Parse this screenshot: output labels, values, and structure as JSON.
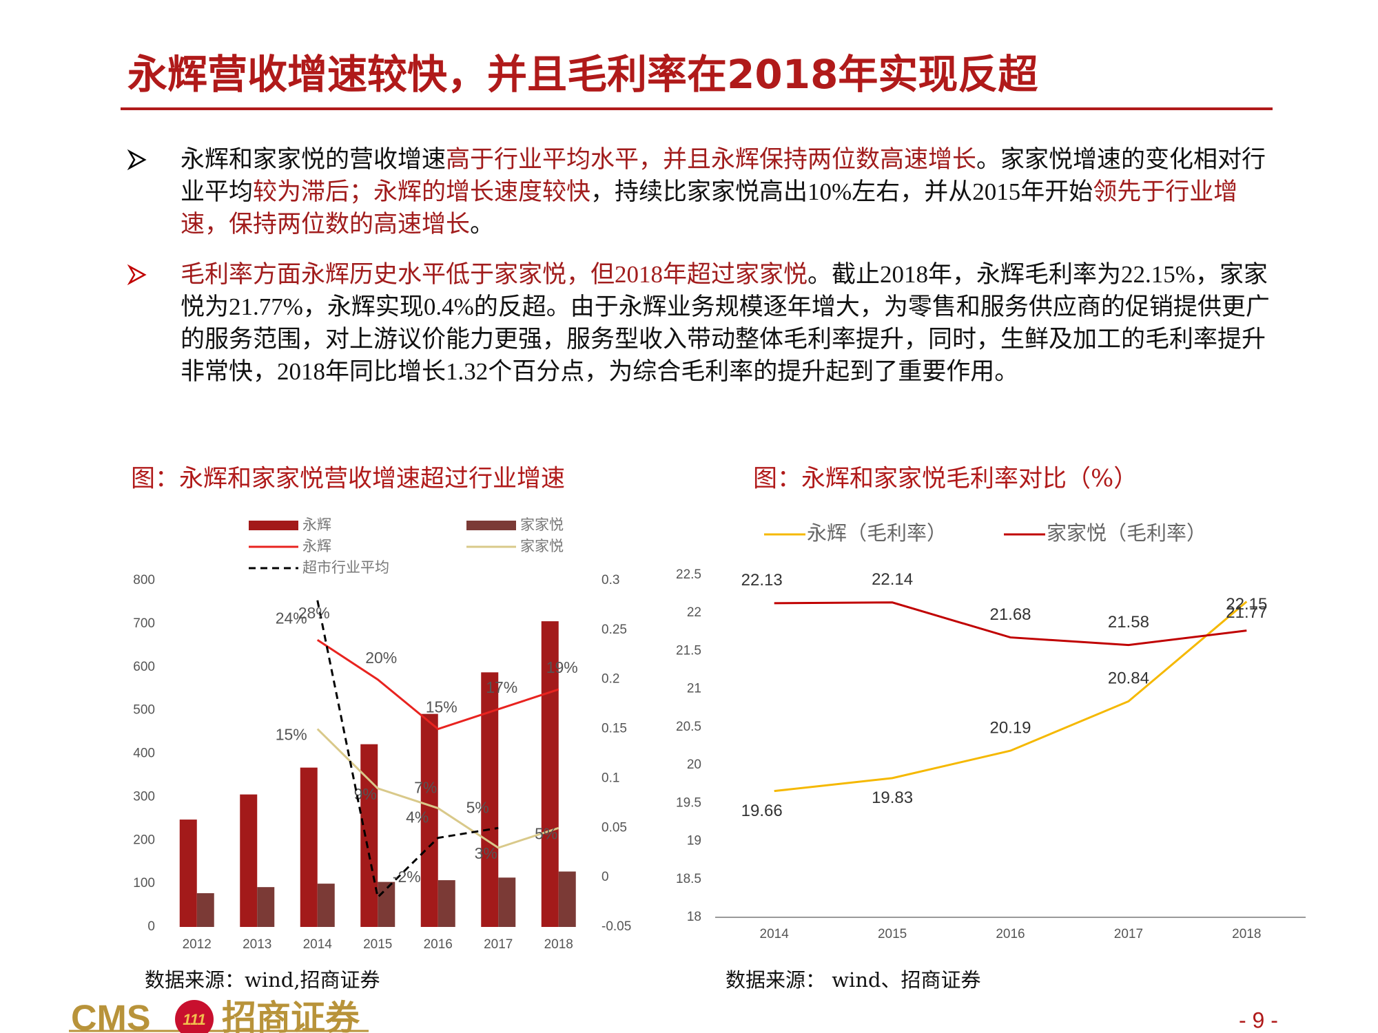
{
  "header": {
    "title": "永辉营收增速较快，并且毛利率在2018年实现反超"
  },
  "bullets": [
    {
      "marker_color": "#000000",
      "segments": [
        {
          "text": "永辉和家家悦的营收增速",
          "style": "plain"
        },
        {
          "text": "高于行业平均水平，并且永辉保持两位数高速增长",
          "style": "red"
        },
        {
          "text": "。家家悦增速的变化相对行业平均",
          "style": "plain"
        },
        {
          "text": "较为滞后；永辉的增长速度较快",
          "style": "red"
        },
        {
          "text": "，持续比家家悦高出10%左右，并从2015年开始",
          "style": "plain"
        },
        {
          "text": "领先于行业增速，保持两位数的高速增长",
          "style": "red"
        },
        {
          "text": "。",
          "style": "plain"
        }
      ]
    },
    {
      "marker_color": "#c00000",
      "segments": [
        {
          "text": "毛利率方面永辉历史水平低于家家悦，但2018年超过家家悦",
          "style": "red"
        },
        {
          "text": "。截止2018年，永辉毛利率为22.15%，家家悦为21.77%，永辉实现0.4%的反超。由于永辉业务规模逐年增大，为零售和服务供应商的促销提供更广的服务范围，对上游议价能力更强，服务型收入带动整体毛利率提升，同时，生鲜及加工的毛利率提升非常快，2018年同比增长1.32个百分点，为综合毛利率的提升起到了重要作用。",
          "style": "plain"
        }
      ]
    }
  ],
  "chart_data": [
    {
      "type": "combo",
      "caption": "图：永辉和家家悦营收增速超过行业增速",
      "source": "数据来源：wind,招商证券",
      "categories": [
        "2012",
        "2013",
        "2014",
        "2015",
        "2016",
        "2017",
        "2018"
      ],
      "ylim": [
        0,
        800
      ],
      "yticks": [
        0,
        100,
        200,
        300,
        400,
        500,
        600,
        700,
        800
      ],
      "y2lim": [
        -0.05,
        0.3
      ],
      "y2ticks": [
        -0.05,
        0,
        0.05,
        0.1,
        0.15,
        0.2,
        0.25,
        0.3
      ],
      "series": [
        {
          "name": "永辉",
          "kind": "bar",
          "color": "#a31a1a",
          "values": [
            248,
            306,
            368,
            422,
            492,
            588,
            706
          ]
        },
        {
          "name": "家家悦",
          "kind": "bar",
          "color": "#7b3a36",
          "values": [
            78,
            92,
            100,
            104,
            108,
            114,
            128
          ]
        },
        {
          "name": "永辉",
          "kind": "line",
          "axis": "y2",
          "color": "#e8231f",
          "values": [
            null,
            null,
            0.24,
            0.2,
            0.15,
            0.17,
            0.19
          ],
          "value_labels": [
            null,
            null,
            "24%",
            "20%",
            "15%",
            "17%",
            "19%"
          ]
        },
        {
          "name": "家家悦",
          "kind": "line",
          "axis": "y2",
          "color": "#d9c98a",
          "values": [
            null,
            null,
            0.15,
            0.09,
            0.07,
            0.03,
            0.05
          ],
          "value_labels": [
            null,
            null,
            "15%",
            "9%",
            "7%",
            "3%",
            "5%"
          ]
        },
        {
          "name": "超市行业平均",
          "kind": "line",
          "axis": "y2",
          "color": "#000000",
          "dashed": true,
          "values": [
            null,
            null,
            0.28,
            -0.02,
            0.04,
            0.05,
            null
          ],
          "value_labels": [
            null,
            null,
            "28%",
            "-2%",
            "4%",
            "5%",
            null
          ]
        }
      ]
    },
    {
      "type": "line",
      "caption": "图：永辉和家家悦毛利率对比（%）",
      "source": "数据来源： wind、招商证券",
      "categories": [
        "2014",
        "2015",
        "2016",
        "2017",
        "2018"
      ],
      "ylim": [
        18,
        22.5
      ],
      "yticks": [
        18,
        18.5,
        19,
        19.5,
        20,
        20.5,
        21,
        21.5,
        22,
        22.5
      ],
      "series": [
        {
          "name": "永辉（毛利率）",
          "color": "#f5b800",
          "values": [
            19.66,
            19.83,
            20.19,
            20.84,
            22.15
          ]
        },
        {
          "name": "家家悦（毛利率）",
          "color": "#c00000",
          "values": [
            22.13,
            22.14,
            21.68,
            21.58,
            21.77
          ]
        }
      ]
    }
  ],
  "footer": {
    "logo_latin": "CMS",
    "logo_badge": "111",
    "logo_name": "招商证券",
    "page": "- 9 -"
  }
}
